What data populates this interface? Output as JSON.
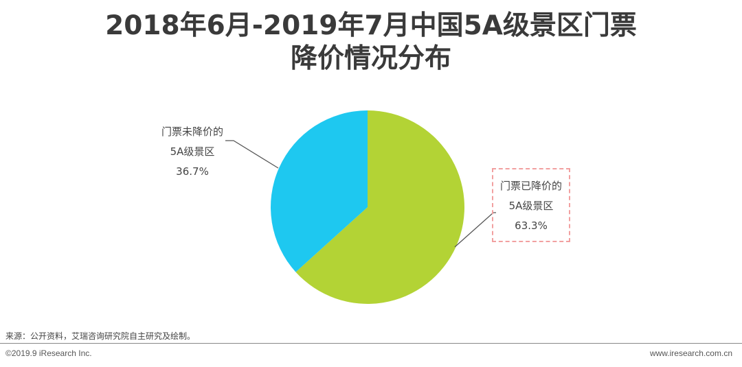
{
  "title": {
    "line1": "2018年6月-2019年7月中国5A级景区门票",
    "line2": "降价情况分布"
  },
  "chart_data": {
    "type": "pie",
    "slices": [
      {
        "line1": "门票已降价的",
        "line2": "5A级景区",
        "pct_label": "63.3%",
        "value": 63.3,
        "color": "#b3d335"
      },
      {
        "line1": "门票未降价的",
        "line2": "5A级景区",
        "pct_label": "36.7%",
        "value": 36.7,
        "color": "#1ec8f0"
      }
    ],
    "start_angle": "12 o'clock",
    "direction": "clockwise"
  },
  "footer": {
    "source": "来源：公开资料，艾瑞咨询研究院自主研究及绘制。",
    "copyright": "©2019.9 iResearch Inc.",
    "url": "www.iresearch.com.cn"
  },
  "colors": {
    "leader_line": "#555555",
    "callout_border": "#f2a0a0"
  }
}
